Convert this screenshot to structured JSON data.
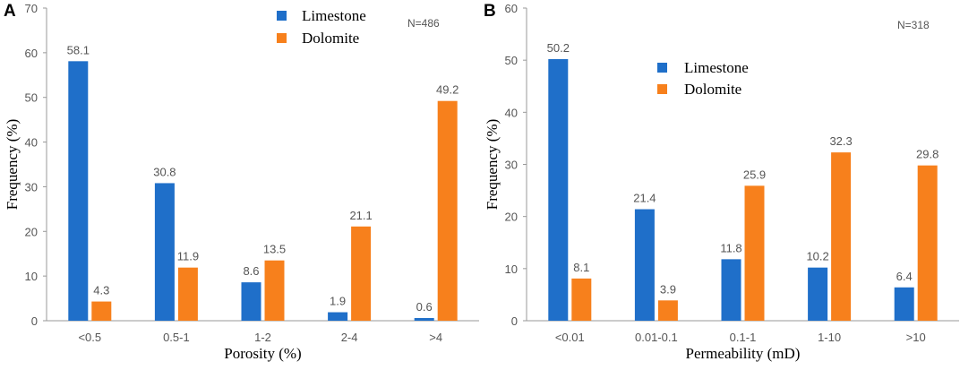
{
  "colors": {
    "limestone": "#1f6fc9",
    "dolomite": "#f7801c",
    "axis": "#999999"
  },
  "chart_data": [
    {
      "type": "bar",
      "panel_label": "A",
      "categories": [
        "<0.5",
        "0.5-1",
        "1-2",
        "2-4",
        ">4"
      ],
      "series": [
        {
          "name": "Limestone",
          "values": [
            58.1,
            30.8,
            8.6,
            1.9,
            0.6
          ]
        },
        {
          "name": "Dolomite",
          "values": [
            4.3,
            11.9,
            13.5,
            21.1,
            49.2
          ]
        }
      ],
      "ylim": [
        0,
        70
      ],
      "yticks": [
        0,
        10,
        20,
        30,
        40,
        50,
        60,
        70
      ],
      "xlabel": "Porosity (%)",
      "ylabel": "Frequency (%)",
      "note": "N=486",
      "legend": "top-right"
    },
    {
      "type": "bar",
      "panel_label": "B",
      "categories": [
        "<0.01",
        "0.01-0.1",
        "0.1-1",
        "1-10",
        ">10"
      ],
      "series": [
        {
          "name": "Limestone",
          "values": [
            50.2,
            21.4,
            11.8,
            10.2,
            6.4
          ]
        },
        {
          "name": "Dolomite",
          "values": [
            8.1,
            3.9,
            25.9,
            32.3,
            29.8
          ]
        }
      ],
      "ylim": [
        0,
        60
      ],
      "yticks": [
        0,
        10,
        20,
        30,
        40,
        50,
        60
      ],
      "xlabel": "Permeability (mD)",
      "ylabel": "Frequency (%)",
      "note": "N=318",
      "legend": "top-right"
    }
  ]
}
